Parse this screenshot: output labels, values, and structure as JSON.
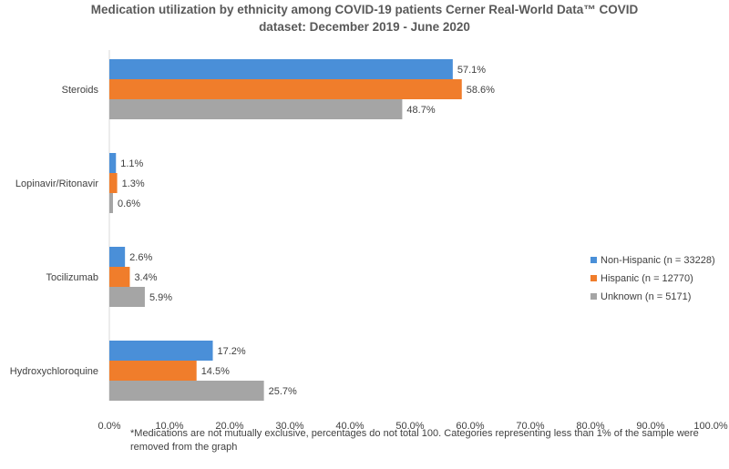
{
  "chart_data": {
    "type": "bar",
    "orientation": "horizontal",
    "title_lines": [
      "Medication utilization by ethnicity among COVID-19 patients Cerner Real-World Data™ COVID",
      "dataset: December 2019 - June 2020"
    ],
    "categories": [
      "Steroids",
      "Lopinavir/Ritonavir",
      "Tocilizumab",
      "Hydroxychloroquine"
    ],
    "series": [
      {
        "name": "Non-Hispanic (n = 33228)",
        "color": "#4a8fd8",
        "values": [
          57.1,
          1.1,
          2.6,
          17.2
        ]
      },
      {
        "name": "Hispanic (n = 12770)",
        "color": "#f07d2b",
        "values": [
          58.6,
          1.3,
          3.4,
          14.5
        ]
      },
      {
        "name": "Unknown (n = 5171)",
        "color": "#a5a5a5",
        "values": [
          48.7,
          0.6,
          5.9,
          25.7
        ]
      }
    ],
    "data_labels": [
      [
        "57.1%",
        "1.1%",
        "2.6%",
        "17.2%"
      ],
      [
        "58.6%",
        "1.3%",
        "3.4%",
        "14.5%"
      ],
      [
        "48.7%",
        "0.6%",
        "5.9%",
        "25.7%"
      ]
    ],
    "xlim": [
      0,
      100
    ],
    "xticks": [
      "0.0%",
      "10.0%",
      "20.0%",
      "30.0%",
      "40.0%",
      "50.0%",
      "60.0%",
      "70.0%",
      "80.0%",
      "90.0%",
      "100.0%"
    ],
    "xlabel": "",
    "ylabel": "",
    "legend_position": "right",
    "grid": false
  },
  "footnote": "*Medications are not mutually exclusive, percentages do not total 100. Categories representing less than 1% of the sample were removed from the graph"
}
